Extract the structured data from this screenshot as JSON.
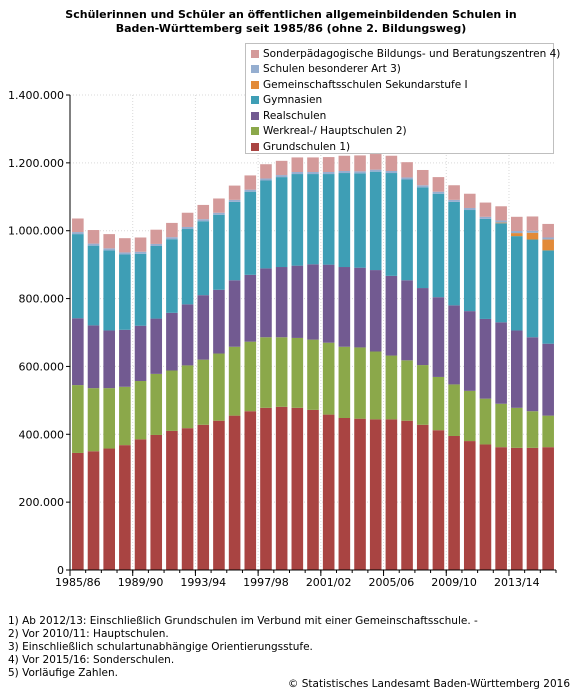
{
  "title_line1": "Schülerinnen und Schüler an öffentlichen allgemeinbildenden Schulen in",
  "title_line2": "Baden-Württemberg  seit 1985/86 (ohne 2. Bildungsweg)",
  "footnotes": [
    "1) Ab 2012/13: Einschließlich Grundschulen im Verbund mit einer Gemeinschaftsschule. -",
    "2) Vor 2010/11: Hauptschulen.",
    "3) Einschließlich schulartunabhängige Orientierungsstufe.",
    "4) Vor 2015/16: Sonderschulen.",
    "5) Vorläufige Zahlen."
  ],
  "source": "© Statistisches Landesamt Baden-Württemberg 2016",
  "chart_data": {
    "type": "bar",
    "stacked": true,
    "categories": [
      "1985/86",
      "1986/87",
      "1987/88",
      "1988/89",
      "1989/90",
      "1990/91",
      "1991/92",
      "1992/93",
      "1993/94",
      "1994/95",
      "1995/96",
      "1996/97",
      "1997/98",
      "1998/99",
      "1999/00",
      "2000/01",
      "2001/02",
      "2002/03",
      "2003/04",
      "2004/05",
      "2005/06",
      "2006/07",
      "2007/08",
      "2008/09",
      "2009/10",
      "2010/11",
      "2011/12",
      "2012/13",
      "2013/14",
      "2014/15",
      "2015/16"
    ],
    "tick_labels": [
      "1985/86",
      "1989/90",
      "1993/94",
      "1997/98",
      "2001/02",
      "2005/06",
      "2009/10",
      "2013/14"
    ],
    "tick_indices": [
      0,
      4,
      8,
      12,
      16,
      20,
      24,
      28
    ],
    "ylim": [
      0,
      1400000
    ],
    "yticks": [
      0,
      200000,
      400000,
      600000,
      800000,
      1000000,
      1200000,
      1400000
    ],
    "ytick_labels": [
      "0",
      "200.000",
      "400.000",
      "600.000",
      "800.000",
      "1.000.000",
      "1.200.000",
      "1.400.000"
    ],
    "grid": true,
    "legend_position": "top-right",
    "series": [
      {
        "name": "Grundschulen 1)",
        "color": "#a94442",
        "values": [
          345000,
          350000,
          358000,
          368000,
          385000,
          398000,
          410000,
          418000,
          428000,
          440000,
          455000,
          468000,
          478000,
          481000,
          478000,
          472000,
          458000,
          448000,
          446000,
          444000,
          444000,
          440000,
          428000,
          412000,
          395000,
          380000,
          370000,
          362000,
          360000,
          360000,
          362000
        ]
      },
      {
        "name": "Werkreal-/ Hauptschulen 2)",
        "color": "#8ba84a",
        "values": [
          200000,
          186000,
          178000,
          172000,
          172000,
          180000,
          178000,
          185000,
          192000,
          198000,
          203000,
          205000,
          208000,
          205000,
          206000,
          207000,
          212000,
          210000,
          210000,
          200000,
          188000,
          178000,
          176000,
          157000,
          152000,
          148000,
          135000,
          128000,
          118000,
          108000,
          93000
        ]
      },
      {
        "name": "Realschulen",
        "color": "#725a91",
        "values": [
          197000,
          185000,
          170000,
          168000,
          163000,
          163000,
          170000,
          180000,
          190000,
          188000,
          196000,
          197000,
          203000,
          207000,
          213000,
          222000,
          230000,
          235000,
          235000,
          240000,
          235000,
          236000,
          227000,
          235000,
          233000,
          235000,
          235000,
          240000,
          228000,
          218000,
          212000
        ]
      },
      {
        "name": "Gymnasien",
        "color": "#3e9eb5",
        "values": [
          248000,
          235000,
          236000,
          222000,
          212000,
          214000,
          217000,
          222000,
          218000,
          221000,
          231000,
          245000,
          259000,
          265000,
          270000,
          266000,
          267000,
          277000,
          278000,
          290000,
          303000,
          297000,
          297000,
          305000,
          305000,
          298000,
          295000,
          292000,
          278000,
          288000,
          275000
        ]
      },
      {
        "name": "Gemeinschaftsschulen Sekundarstufe I",
        "color": "#e28a38",
        "values": [
          0,
          0,
          0,
          0,
          0,
          0,
          0,
          0,
          0,
          0,
          0,
          0,
          0,
          0,
          0,
          0,
          0,
          0,
          0,
          0,
          0,
          0,
          0,
          0,
          0,
          0,
          0,
          2000,
          9000,
          20000,
          32000
        ]
      },
      {
        "name": "Schulen besonderer Art 3)",
        "color": "#95aed0",
        "values": [
          6000,
          6000,
          6000,
          6000,
          6000,
          6000,
          6000,
          6000,
          6000,
          6000,
          6000,
          6000,
          6000,
          6000,
          6000,
          6000,
          6000,
          6000,
          6000,
          6000,
          6000,
          6000,
          6000,
          6000,
          6000,
          6000,
          6000,
          6000,
          6000,
          6000,
          6000
        ]
      },
      {
        "name": "Sonderpädagogische Bildungs- und Beratungszentren 4)",
        "color": "#d49a9a",
        "values": [
          40000,
          40000,
          42000,
          42000,
          42000,
          42000,
          42000,
          42000,
          42000,
          42000,
          42000,
          42000,
          42000,
          42000,
          43000,
          43000,
          44000,
          45000,
          47000,
          46000,
          45000,
          45000,
          45000,
          43000,
          43000,
          42000,
          42000,
          42000,
          42000,
          42000,
          40000
        ]
      }
    ]
  }
}
